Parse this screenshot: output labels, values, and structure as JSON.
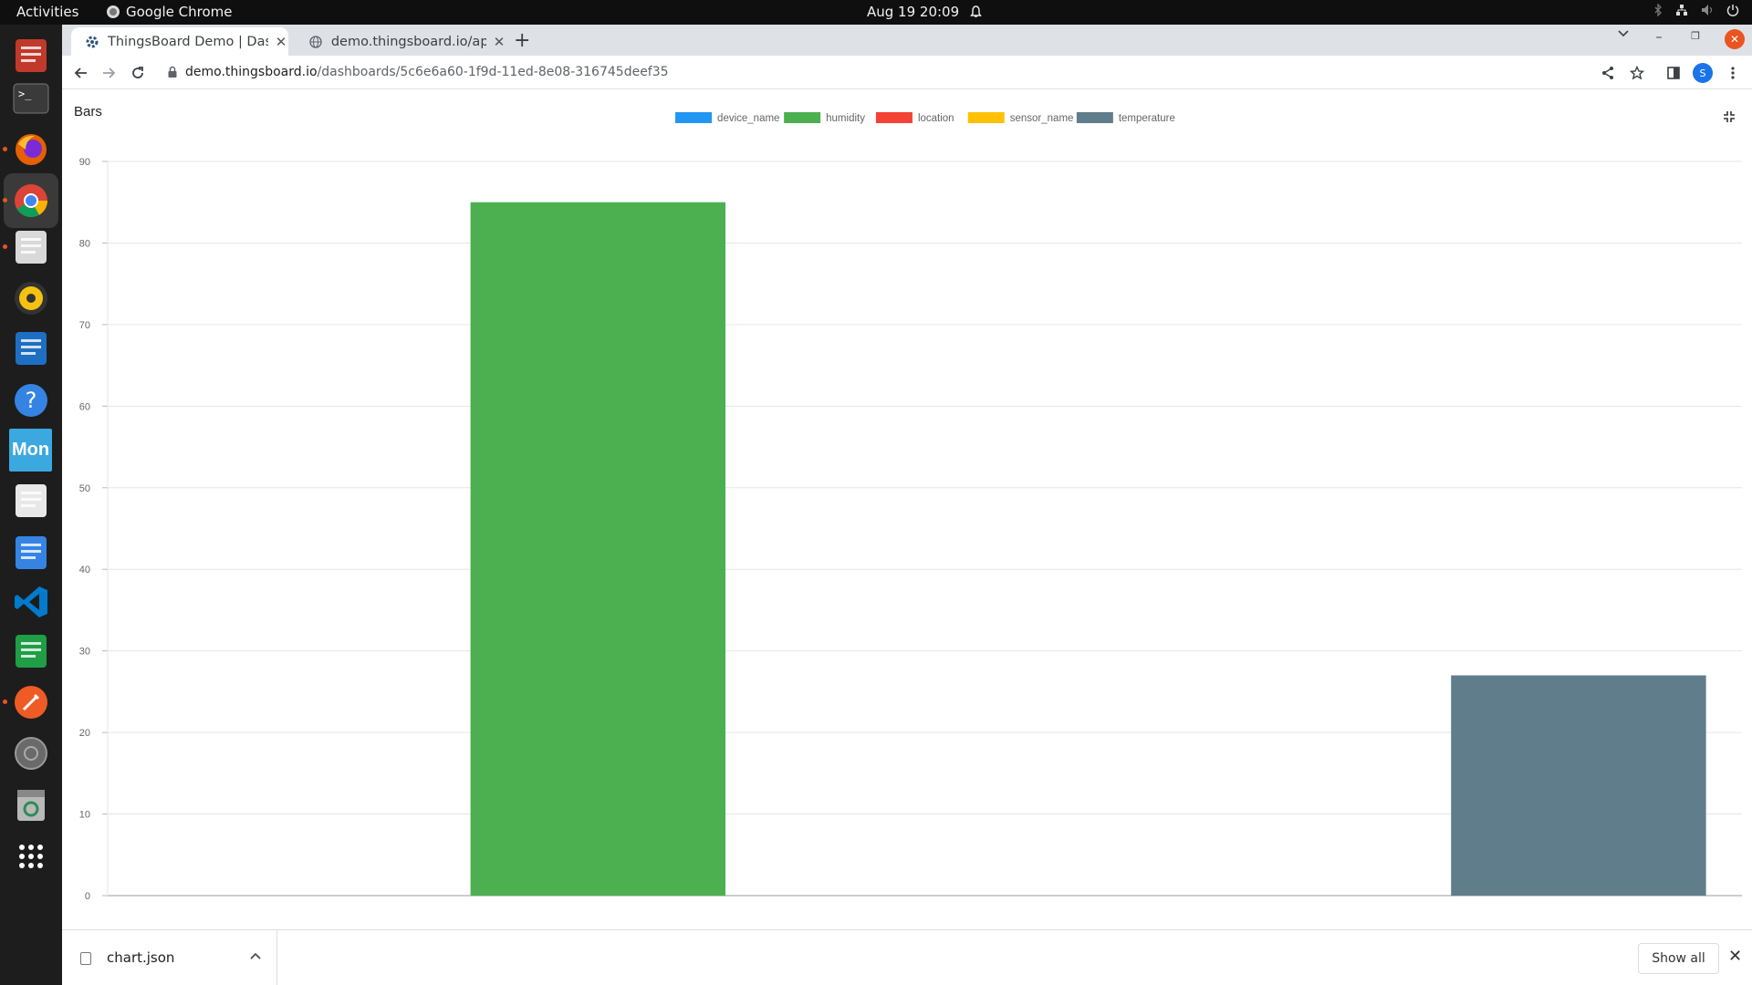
{
  "topbar": {
    "activities": "Activities",
    "app_name": "Google Chrome",
    "clock": "Aug 19  20:09"
  },
  "dock": {
    "items": [
      {
        "name": "remmina-icon",
        "color": "#c0392b"
      },
      {
        "name": "terminal-icon",
        "color": "#2b2b2b"
      },
      {
        "name": "firefox-icon",
        "color": "#e66000"
      },
      {
        "name": "chrome-icon",
        "color": "#4285f4"
      },
      {
        "name": "files-icon",
        "color": "#d9d9d9"
      },
      {
        "name": "rhythmbox-icon",
        "color": "#f5c211"
      },
      {
        "name": "writer-icon",
        "color": "#1e6fc4"
      },
      {
        "name": "help-icon",
        "color": "#3584e4"
      },
      {
        "name": "monitor-icon",
        "color": "#3ba8e0"
      },
      {
        "name": "reader-icon",
        "color": "#e8e8e8"
      },
      {
        "name": "text-editor-icon",
        "color": "#3584e4"
      },
      {
        "name": "vscode-icon",
        "color": "#007acc"
      },
      {
        "name": "calc-icon",
        "color": "#1f9e46"
      },
      {
        "name": "postman-icon",
        "color": "#ef5b25"
      },
      {
        "name": "disc-icon",
        "color": "#9a9a9a"
      },
      {
        "name": "trash-icon",
        "color": "#6b8f6b"
      },
      {
        "name": "app-grid-icon",
        "color": "#ffffff"
      }
    ],
    "monitor_label": "Mon"
  },
  "browser": {
    "tabs": [
      {
        "title": "ThingsBoard Demo | Dashboards",
        "active": true
      },
      {
        "title": "demo.thingsboard.io/api/",
        "active": false
      }
    ],
    "url_host": "demo.thingsboard.io",
    "url_path": "/dashboards/5c6e6a60-1f9d-11ed-8e08-316745deef35",
    "profile_initial": "S"
  },
  "widget": {
    "title": "Bars"
  },
  "chart_data": {
    "type": "bar",
    "title": "",
    "xlabel": "",
    "ylabel": "",
    "ylim": [
      0,
      90
    ],
    "yticks": [
      0,
      10,
      20,
      30,
      40,
      50,
      60,
      70,
      80,
      90
    ],
    "grid": true,
    "legend_position": "top-center",
    "series": [
      {
        "name": "device_name",
        "value": null,
        "color": "#2196f3"
      },
      {
        "name": "humidity",
        "value": 85,
        "color": "#4caf50"
      },
      {
        "name": "location",
        "value": null,
        "color": "#f44336"
      },
      {
        "name": "sensor_name",
        "value": null,
        "color": "#ffc107"
      },
      {
        "name": "temperature",
        "value": 27,
        "color": "#607d8b"
      }
    ]
  },
  "downloads": {
    "file_name": "chart.json",
    "show_all": "Show all"
  }
}
